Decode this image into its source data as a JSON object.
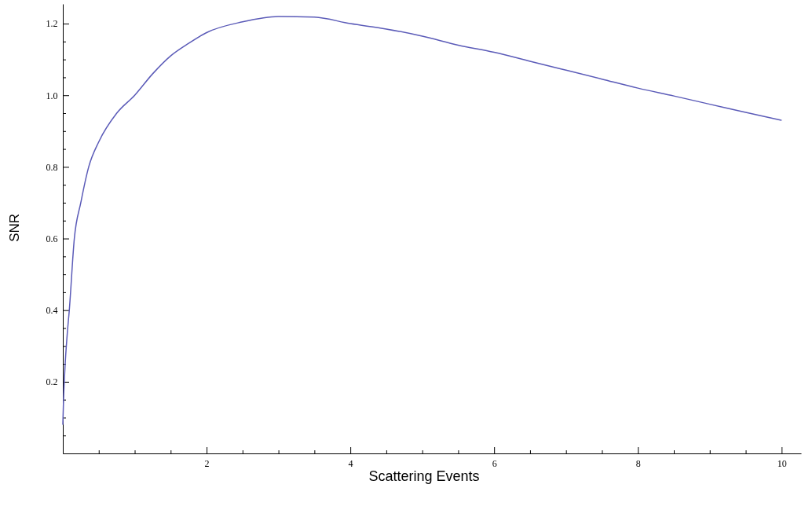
{
  "chart_data": {
    "type": "line",
    "xlabel": "Scattering Events",
    "ylabel": "SNR",
    "x": [
      0,
      0.01,
      0.03,
      0.06,
      0.09,
      0.16,
      0.25,
      0.36,
      0.5,
      0.75,
      1,
      1.25,
      1.5,
      1.75,
      2,
      2.5,
      3,
      3.5,
      4,
      4.5,
      5,
      5.5,
      6,
      6.5,
      7,
      7.5,
      8,
      8.5,
      9,
      9.5,
      10
    ],
    "series": [
      {
        "color": "#5b5bb8",
        "values": [
          0.08,
          0.15,
          0.24,
          0.33,
          0.4,
          0.6,
          0.7,
          0.8,
          0.87,
          0.95,
          1.0,
          1.06,
          1.11,
          1.145,
          1.175,
          1.205,
          1.22,
          1.218,
          1.2,
          1.185,
          1.165,
          1.14,
          1.12,
          1.095,
          1.07,
          1.045,
          1.02,
          0.998,
          0.975,
          0.952,
          0.93
        ]
      }
    ],
    "xlim": [
      0,
      10.27
    ],
    "ylim": [
      0,
      1.255
    ],
    "xticks": [
      {
        "value": 0.5,
        "label": null
      },
      {
        "value": 1,
        "label": null
      },
      {
        "value": 1.5,
        "label": null
      },
      2,
      {
        "value": 2.5,
        "label": null
      },
      {
        "value": 3,
        "label": null
      },
      {
        "value": 3.5,
        "label": null
      },
      4,
      {
        "value": 4.5,
        "label": null
      },
      {
        "value": 5,
        "label": null
      },
      {
        "value": 5.5,
        "label": null
      },
      6,
      {
        "value": 6.5,
        "label": null
      },
      {
        "value": 7,
        "label": null
      },
      {
        "value": 7.5,
        "label": null
      },
      8,
      {
        "value": 8.5,
        "label": null
      },
      {
        "value": 9,
        "label": null
      },
      {
        "value": 9.5,
        "label": null
      },
      10
    ],
    "yticks": [
      {
        "value": 0.05,
        "label": null
      },
      {
        "value": 0.1,
        "label": null
      },
      {
        "value": 0.15,
        "label": null
      },
      0.2,
      {
        "value": 0.25,
        "label": null
      },
      {
        "value": 0.3,
        "label": null
      },
      {
        "value": 0.35,
        "label": null
      },
      0.4,
      {
        "value": 0.45,
        "label": null
      },
      {
        "value": 0.5,
        "label": null
      },
      {
        "value": 0.55,
        "label": null
      },
      0.6,
      {
        "value": 0.65,
        "label": null
      },
      {
        "value": 0.7,
        "label": null
      },
      {
        "value": 0.75,
        "label": null
      },
      0.8,
      {
        "value": 0.85,
        "label": null
      },
      {
        "value": 0.9,
        "label": null
      },
      {
        "value": 0.95,
        "label": null
      },
      {
        "value": 1,
        "label": "1.0"
      },
      {
        "value": 1.05,
        "label": null
      },
      {
        "value": 1.1,
        "label": null
      },
      {
        "value": 1.15,
        "label": null
      },
      1.2
    ],
    "marker": "none",
    "line_style": "solid",
    "grid": false
  }
}
